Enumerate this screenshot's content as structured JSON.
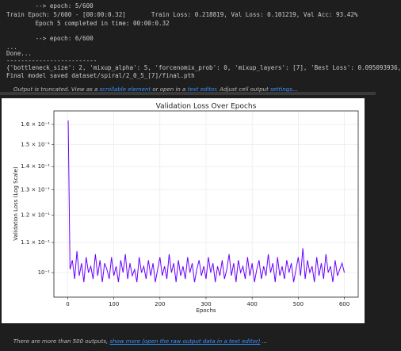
{
  "output": {
    "lines": [
      "        --> epoch: 5/600",
      "Train Epoch: 5/600 - [00:00:0.32]       Train Loss: 0.218819, Val Loss: 0.101219, Val Acc: 93.42%",
      "        Epoch 5 completed in time: 00:00:0.32",
      "        --> epoch: 6/600",
      "...",
      "Done...",
      "-------------------------",
      "{'bottleneck_size': 2, 'mixup_alpha': 5, 'forcenomix_prob': 0, 'mixup_layers': [7], 'Best Loss': 0.095093936,",
      "Final model saved dataset/spiral/2_0_5_[7]/final.pth"
    ],
    "truncated": [
      "Output is truncated. View as a ",
      "scrollable element",
      " or open in a ",
      "text editor",
      ". Adjust cell output ",
      "settings",
      "..."
    ]
  },
  "chart_data": {
    "type": "line",
    "title": "Validation Loss Over Epochs",
    "x_label": "Epochs",
    "y_label": "Validation Loss (Log Scale)",
    "color": "#6a00ff",
    "log_y": true,
    "grid": true,
    "xlim": [
      -30,
      630
    ],
    "xticks": [
      0,
      100,
      200,
      300,
      400,
      500,
      600
    ],
    "ylim": [
      0.0925,
      0.167
    ],
    "yticks": [
      {
        "value": 0.1,
        "label": "10⁻¹"
      },
      {
        "value": 0.11,
        "label": "1.1 × 10⁻¹"
      },
      {
        "value": 0.12,
        "label": "1.2 × 10⁻¹"
      },
      {
        "value": 0.13,
        "label": "1.3 × 10⁻¹"
      },
      {
        "value": 0.14,
        "label": "1.4 × 10⁻¹"
      },
      {
        "value": 0.15,
        "label": "1.5 × 10⁻¹"
      },
      {
        "value": 0.16,
        "label": "1.6 × 10⁻¹"
      }
    ],
    "x": [
      1,
      5,
      10,
      15,
      20,
      25,
      30,
      35,
      40,
      45,
      50,
      55,
      60,
      65,
      70,
      75,
      80,
      85,
      90,
      95,
      100,
      105,
      110,
      115,
      120,
      125,
      130,
      135,
      140,
      145,
      150,
      155,
      160,
      165,
      170,
      175,
      180,
      185,
      190,
      195,
      200,
      205,
      210,
      215,
      220,
      225,
      230,
      235,
      240,
      245,
      250,
      255,
      260,
      265,
      270,
      275,
      280,
      285,
      290,
      295,
      300,
      305,
      310,
      315,
      320,
      325,
      330,
      335,
      340,
      345,
      350,
      355,
      360,
      365,
      370,
      375,
      380,
      385,
      390,
      395,
      400,
      405,
      410,
      415,
      420,
      425,
      430,
      435,
      440,
      445,
      450,
      455,
      460,
      465,
      470,
      475,
      480,
      485,
      490,
      495,
      500,
      505,
      510,
      515,
      520,
      525,
      530,
      535,
      540,
      545,
      550,
      555,
      560,
      565,
      570,
      575,
      580,
      585,
      590,
      595,
      600
    ],
    "values": [
      0.162,
      0.101,
      0.104,
      0.098,
      0.107,
      0.099,
      0.103,
      0.097,
      0.105,
      0.1,
      0.102,
      0.098,
      0.106,
      0.099,
      0.104,
      0.097,
      0.103,
      0.101,
      0.098,
      0.105,
      0.099,
      0.102,
      0.097,
      0.104,
      0.1,
      0.106,
      0.098,
      0.103,
      0.099,
      0.101,
      0.097,
      0.105,
      0.1,
      0.102,
      0.098,
      0.104,
      0.099,
      0.103,
      0.097,
      0.101,
      0.105,
      0.099,
      0.102,
      0.098,
      0.106,
      0.1,
      0.103,
      0.097,
      0.104,
      0.099,
      0.102,
      0.098,
      0.105,
      0.1,
      0.103,
      0.097,
      0.101,
      0.104,
      0.099,
      0.102,
      0.098,
      0.105,
      0.1,
      0.103,
      0.097,
      0.102,
      0.099,
      0.104,
      0.098,
      0.101,
      0.106,
      0.099,
      0.103,
      0.097,
      0.104,
      0.1,
      0.102,
      0.098,
      0.105,
      0.099,
      0.103,
      0.097,
      0.101,
      0.104,
      0.098,
      0.102,
      0.099,
      0.106,
      0.1,
      0.103,
      0.097,
      0.105,
      0.099,
      0.102,
      0.098,
      0.104,
      0.1,
      0.103,
      0.097,
      0.101,
      0.105,
      0.099,
      0.108,
      0.098,
      0.104,
      0.1,
      0.102,
      0.097,
      0.105,
      0.099,
      0.103,
      0.098,
      0.106,
      0.1,
      0.102,
      0.097,
      0.104,
      0.099,
      0.101,
      0.103,
      0.1
    ]
  },
  "footer": [
    "There are more than 500 outputs, ",
    "show more (open the raw output data in a text editor)",
    " ..."
  ]
}
